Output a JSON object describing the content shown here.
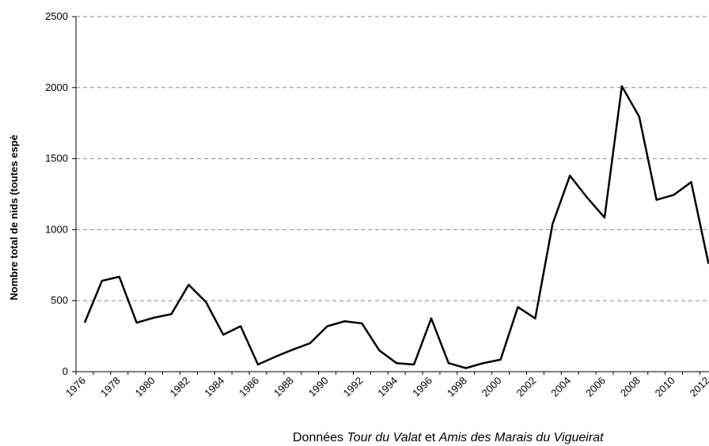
{
  "chart_data": {
    "type": "line",
    "ylabel": "Nombre total de nids (toutes espè",
    "note": [
      "Données ",
      "Tour du Valat",
      " et ",
      "Amis des Marais du Vigueirat"
    ],
    "categories": [
      "1976",
      null,
      "1978",
      null,
      "1980",
      null,
      "1982",
      null,
      "1984",
      null,
      "1986",
      null,
      "1988",
      null,
      "1990",
      null,
      "1992",
      null,
      "1994",
      null,
      "1996",
      null,
      "1998",
      null,
      "2000",
      null,
      "2002",
      null,
      "2004",
      null,
      "2006",
      null,
      "2008",
      null,
      "2010",
      null,
      "2012"
    ],
    "series": [
      {
        "name": "Nids",
        "color": "#000000",
        "values": [
          345,
          640,
          668,
          345,
          380,
          405,
          612,
          490,
          260,
          320,
          50,
          105,
          155,
          200,
          320,
          355,
          340,
          150,
          60,
          50,
          375,
          60,
          25,
          60,
          85,
          455,
          375,
          1040,
          1380,
          1225,
          1085,
          2010,
          1795,
          1210,
          1245,
          1335,
          760
        ]
      }
    ],
    "ylim": [
      0,
      2500
    ],
    "yticks": [
      0,
      500,
      1000,
      1500,
      2000,
      2500
    ],
    "grid": true
  }
}
